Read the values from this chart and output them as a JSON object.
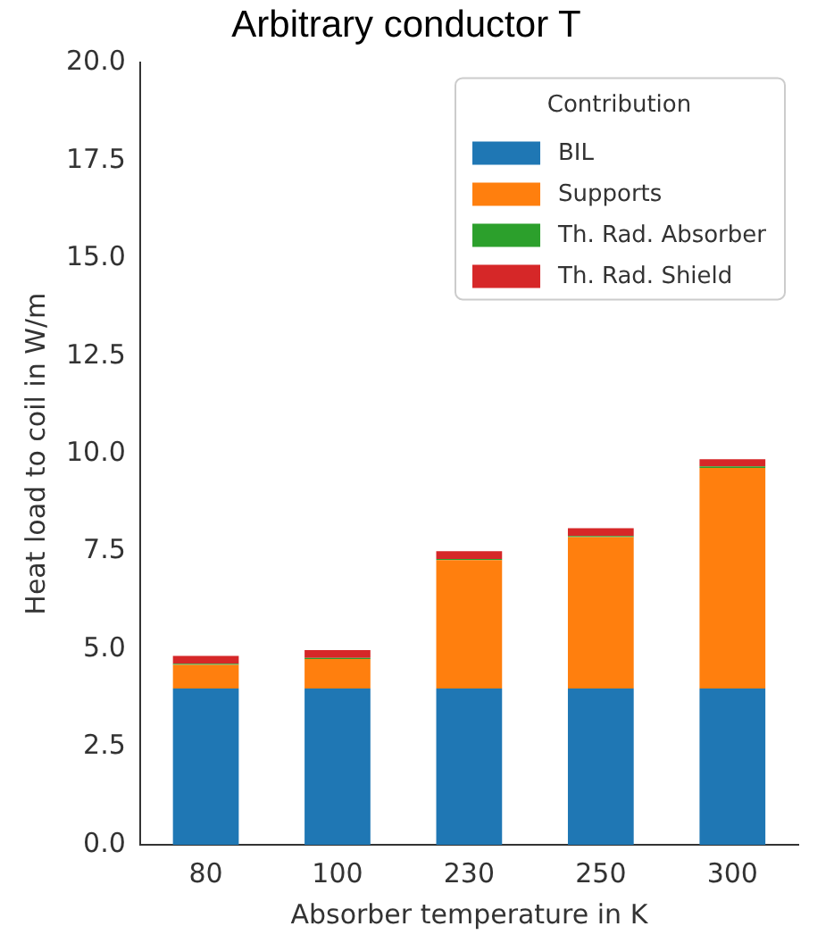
{
  "chart_data": {
    "type": "bar",
    "title": "Arbitrary conductor T",
    "xlabel": "Absorber temperature in K",
    "ylabel": "Heat load to coil in W/m",
    "legend_title": "Contribution",
    "categories": [
      "80",
      "100",
      "230",
      "250",
      "300"
    ],
    "series": [
      {
        "name": "BIL",
        "color": "#1f77b4",
        "values": [
          4.0,
          4.0,
          4.0,
          4.0,
          4.0
        ]
      },
      {
        "name": "Supports",
        "color": "#ff7f0e",
        "values": [
          0.6,
          0.75,
          3.28,
          3.87,
          5.64
        ]
      },
      {
        "name": "Th. Rad. Absorber",
        "color": "#2ca02c",
        "values": [
          0.03,
          0.03,
          0.03,
          0.03,
          0.04
        ]
      },
      {
        "name": "Th. Rad. Shield",
        "color": "#d62728",
        "values": [
          0.2,
          0.2,
          0.2,
          0.2,
          0.18
        ]
      }
    ],
    "stacked": true,
    "ylim": [
      0,
      20
    ],
    "yticks": [
      {
        "value": 0,
        "label": "0.0"
      },
      {
        "value": 2.5,
        "label": "2.5"
      },
      {
        "value": 5,
        "label": "5.0"
      },
      {
        "value": 7.5,
        "label": "7.5"
      },
      {
        "value": 10,
        "label": "10.0"
      },
      {
        "value": 12.5,
        "label": "12.5"
      },
      {
        "value": 15,
        "label": "15.0"
      },
      {
        "value": 17.5,
        "label": "17.5"
      },
      {
        "value": 20,
        "label": "20.0"
      }
    ],
    "grid": false,
    "legend": "top right"
  }
}
